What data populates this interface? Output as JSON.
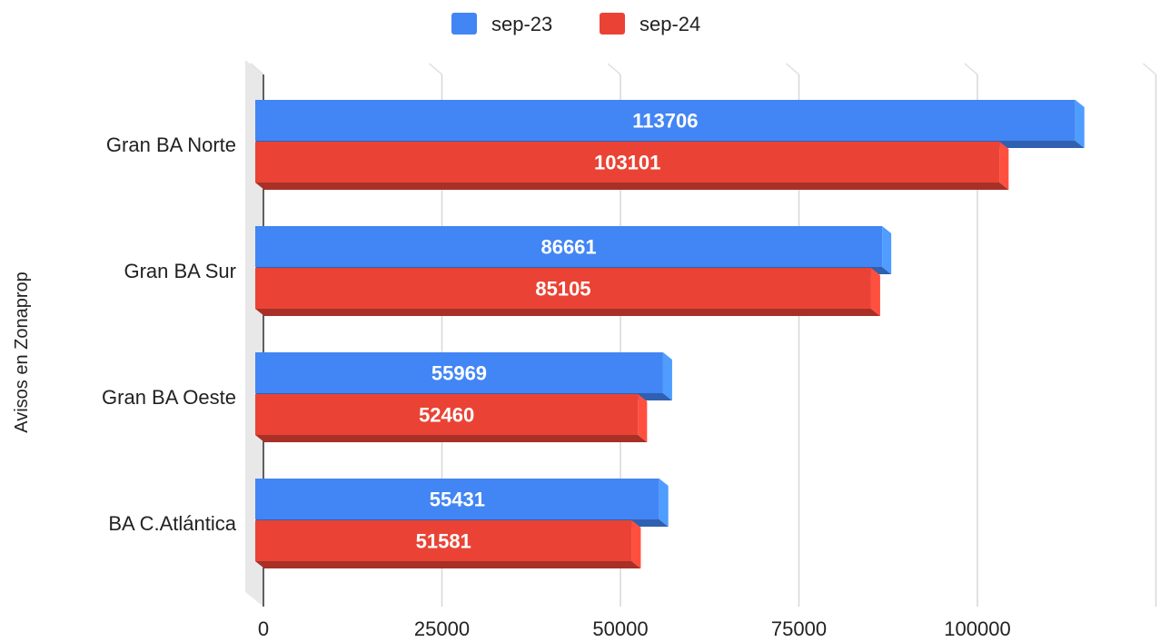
{
  "chart_data": {
    "type": "bar",
    "orientation": "horizontal",
    "style": "3d",
    "title": "",
    "xlabel": "",
    "ylabel": "Avisos en Zonaprop",
    "categories": [
      "Gran BA Norte",
      "Gran BA Sur",
      "Gran BA Oeste",
      "BA C.Atlántica"
    ],
    "series": [
      {
        "name": "sep-23",
        "color": "#4285f4",
        "values": [
          113706,
          86661,
          55969,
          55431
        ]
      },
      {
        "name": "sep-24",
        "color": "#ea4335",
        "values": [
          103101,
          85105,
          52460,
          51581
        ]
      }
    ],
    "xlim": [
      0,
      125000
    ],
    "xticks": [
      0,
      25000,
      50000,
      75000,
      100000
    ],
    "xtick_labels": [
      "0",
      "25000",
      "50000",
      "75000",
      "100000"
    ],
    "grid": true,
    "legend_position": "top",
    "data_labels": true
  }
}
